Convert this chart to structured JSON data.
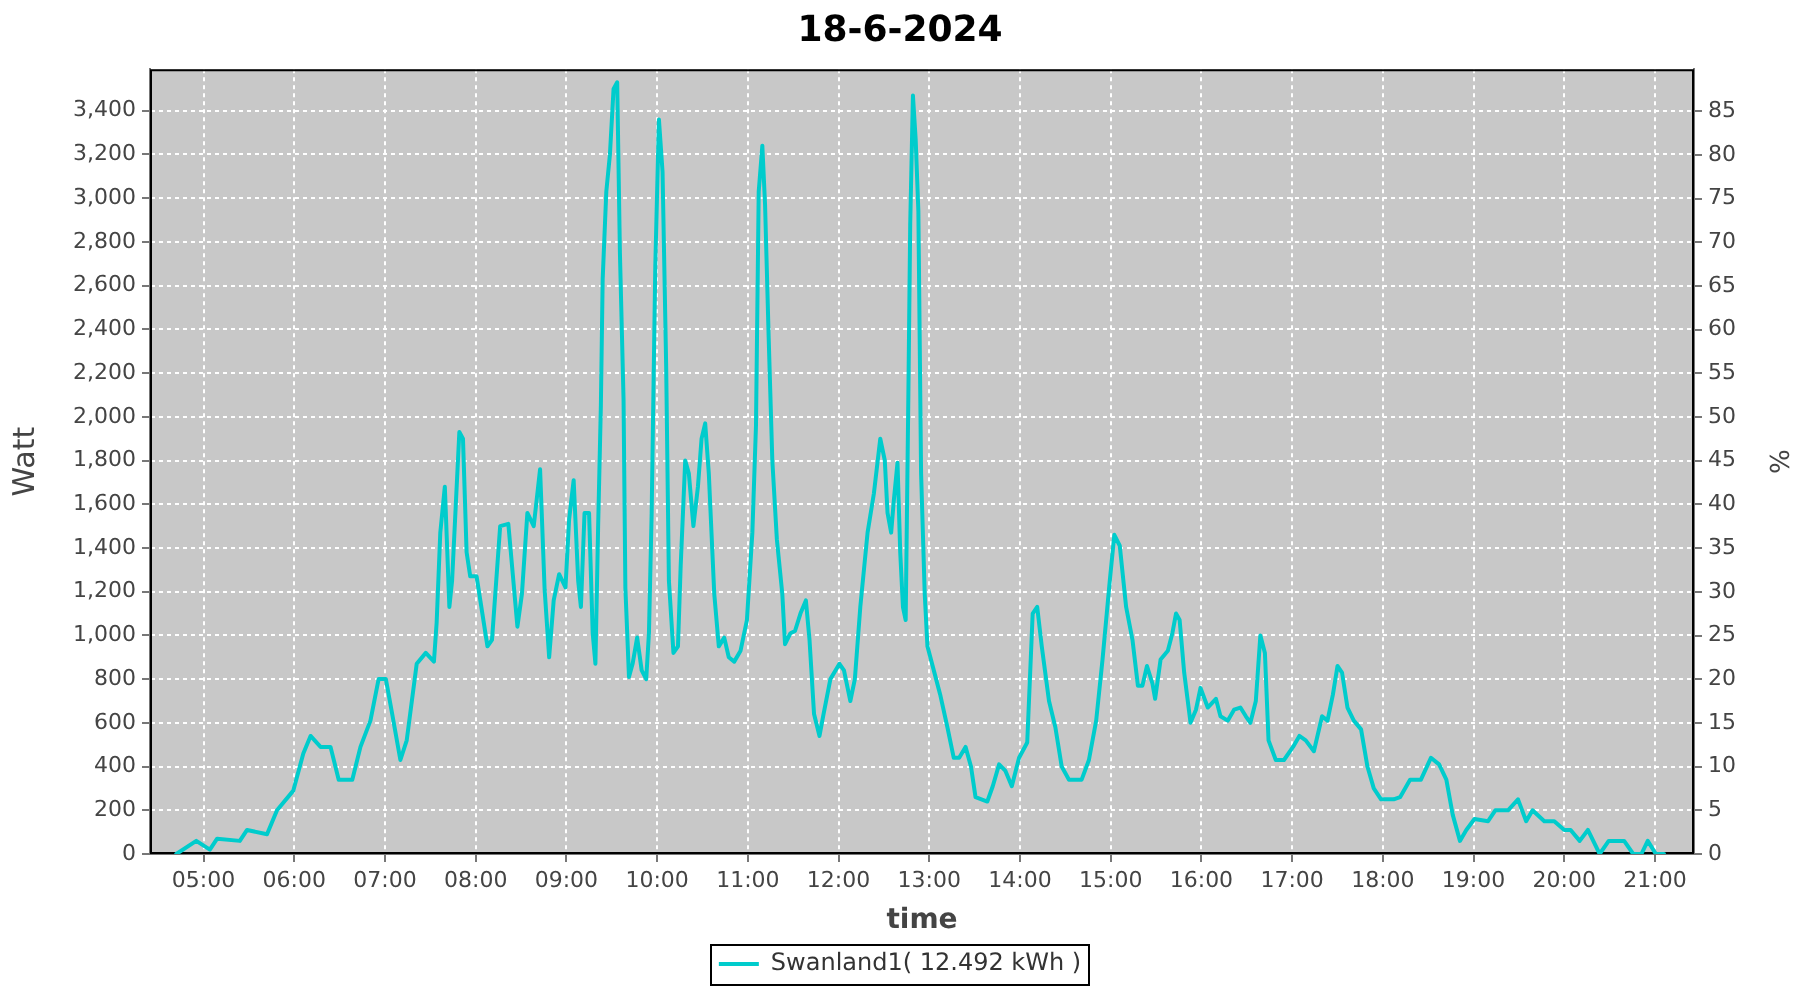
{
  "chart_data": {
    "type": "line",
    "title": "18-6-2024",
    "xlabel": "time",
    "ylabel": "Watt",
    "y2label": "%",
    "x": [
      4.7,
      4.92,
      5.07,
      5.15,
      5.4,
      5.48,
      5.7,
      5.81,
      5.99,
      6.1,
      6.18,
      6.29,
      6.4,
      6.49,
      6.64,
      6.73,
      6.84,
      6.93,
      7.01,
      7.08,
      7.17,
      7.24,
      7.35,
      7.45,
      7.54,
      7.57,
      7.61,
      7.66,
      7.71,
      7.74,
      7.78,
      7.82,
      7.86,
      7.9,
      7.94,
      8.01,
      8.13,
      8.18,
      8.27,
      8.36,
      8.46,
      8.51,
      8.57,
      8.64,
      8.71,
      8.76,
      8.81,
      8.86,
      8.92,
      8.99,
      9.03,
      9.08,
      9.13,
      9.16,
      9.2,
      9.25,
      9.29,
      9.32,
      9.35,
      9.38,
      9.4,
      9.44,
      9.48,
      9.52,
      9.56,
      9.59,
      9.63,
      9.65,
      9.69,
      9.73,
      9.78,
      9.83,
      9.88,
      9.91,
      9.94,
      9.98,
      10.02,
      10.06,
      10.1,
      10.13,
      10.18,
      10.23,
      10.26,
      10.31,
      10.35,
      10.4,
      10.45,
      10.49,
      10.53,
      10.57,
      10.63,
      10.68,
      10.74,
      10.79,
      10.85,
      10.92,
      10.99,
      11.05,
      11.09,
      11.12,
      11.16,
      11.19,
      11.23,
      11.27,
      11.32,
      11.38,
      11.41,
      11.47,
      11.52,
      11.58,
      11.64,
      11.68,
      11.73,
      11.79,
      11.83,
      11.91,
      12.01,
      12.06,
      12.13,
      12.18,
      12.24,
      12.32,
      12.39,
      12.46,
      12.51,
      12.54,
      12.58,
      12.61,
      12.65,
      12.68,
      12.71,
      12.74,
      12.77,
      12.79,
      12.82,
      12.85,
      12.88,
      12.91,
      12.95,
      12.98,
      13.05,
      13.12,
      13.2,
      13.27,
      13.33,
      13.4,
      13.46,
      13.51,
      13.64,
      13.7,
      13.77,
      13.84,
      13.91,
      13.99,
      14.08,
      14.14,
      14.19,
      14.24,
      14.32,
      14.39,
      14.46,
      14.54,
      14.68,
      14.76,
      14.84,
      14.91,
      14.99,
      15.04,
      15.1,
      15.17,
      15.24,
      15.3,
      15.35,
      15.4,
      15.46,
      15.49,
      15.55,
      15.63,
      15.68,
      15.72,
      15.76,
      15.81,
      15.88,
      15.94,
      15.99,
      16.07,
      16.16,
      16.21,
      16.29,
      16.36,
      16.43,
      16.49,
      16.54,
      16.6,
      16.65,
      16.7,
      16.74,
      16.82,
      16.91,
      17.01,
      17.08,
      17.15,
      17.24,
      17.33,
      17.39,
      17.45,
      17.5,
      17.55,
      17.61,
      17.68,
      17.76,
      17.83,
      17.9,
      17.98,
      18.12,
      18.19,
      18.3,
      18.42,
      18.53,
      18.62,
      18.7,
      18.77,
      18.85,
      18.92,
      19.01,
      19.16,
      19.24,
      19.38,
      19.49,
      19.58,
      19.65,
      19.78,
      19.89,
      20.0,
      20.07,
      20.17,
      20.26,
      20.39,
      20.49,
      20.66,
      20.76,
      20.85,
      20.92,
      21.01,
      21.1
    ],
    "series": [
      {
        "name": "Swanland1( 12.492 kWh )",
        "color": "#00cccc",
        "values": [
          0,
          60,
          20,
          70,
          60,
          110,
          90,
          200,
          290,
          460,
          540,
          490,
          490,
          340,
          340,
          490,
          610,
          800,
          800,
          640,
          430,
          520,
          870,
          920,
          880,
          1060,
          1470,
          1680,
          1130,
          1250,
          1590,
          1930,
          1900,
          1380,
          1270,
          1270,
          950,
          980,
          1500,
          1510,
          1040,
          1190,
          1560,
          1500,
          1760,
          1210,
          900,
          1160,
          1280,
          1220,
          1530,
          1710,
          1250,
          1130,
          1560,
          1560,
          1010,
          870,
          1500,
          2050,
          2630,
          3030,
          3200,
          3500,
          3530,
          2750,
          2080,
          1220,
          810,
          870,
          990,
          840,
          800,
          1010,
          1560,
          2690,
          3360,
          3120,
          2230,
          1250,
          920,
          950,
          1320,
          1800,
          1740,
          1500,
          1680,
          1900,
          1970,
          1740,
          1190,
          950,
          990,
          900,
          880,
          930,
          1070,
          1470,
          1960,
          3030,
          3240,
          2970,
          2360,
          1800,
          1440,
          1190,
          960,
          1010,
          1020,
          1100,
          1160,
          980,
          640,
          540,
          630,
          800,
          870,
          840,
          700,
          800,
          1130,
          1470,
          1650,
          1900,
          1800,
          1560,
          1470,
          1620,
          1790,
          1380,
          1130,
          1070,
          2110,
          2880,
          3470,
          3270,
          2940,
          1740,
          1190,
          950,
          840,
          730,
          580,
          440,
          440,
          490,
          400,
          260,
          240,
          310,
          410,
          380,
          310,
          440,
          510,
          1100,
          1130,
          950,
          700,
          580,
          400,
          340,
          340,
          430,
          610,
          890,
          1250,
          1460,
          1410,
          1130,
          980,
          770,
          770,
          860,
          780,
          710,
          890,
          930,
          1010,
          1100,
          1070,
          830,
          600,
          660,
          760,
          670,
          710,
          630,
          610,
          660,
          670,
          630,
          600,
          700,
          1000,
          920,
          520,
          430,
          430,
          490,
          540,
          520,
          470,
          630,
          610,
          730,
          860,
          830,
          670,
          610,
          570,
          400,
          300,
          250,
          250,
          260,
          340,
          340,
          440,
          410,
          340,
          180,
          60,
          110,
          160,
          150,
          200,
          200,
          250,
          150,
          200,
          150,
          150,
          110,
          110,
          60,
          110,
          0,
          60,
          60,
          0,
          0,
          60,
          0,
          0
        ]
      }
    ],
    "xlim": [
      4.41,
      21.43
    ],
    "xticks": [
      {
        "value": 5,
        "label": "05:00"
      },
      {
        "value": 6,
        "label": "06:00"
      },
      {
        "value": 7,
        "label": "07:00"
      },
      {
        "value": 8,
        "label": "08:00"
      },
      {
        "value": 9,
        "label": "09:00"
      },
      {
        "value": 10,
        "label": "10:00"
      },
      {
        "value": 11,
        "label": "11:00"
      },
      {
        "value": 12,
        "label": "12:00"
      },
      {
        "value": 13,
        "label": "13:00"
      },
      {
        "value": 14,
        "label": "14:00"
      },
      {
        "value": 15,
        "label": "15:00"
      },
      {
        "value": 16,
        "label": "16:00"
      },
      {
        "value": 17,
        "label": "17:00"
      },
      {
        "value": 18,
        "label": "18:00"
      },
      {
        "value": 19,
        "label": "19:00"
      },
      {
        "value": 20,
        "label": "20:00"
      },
      {
        "value": 21,
        "label": "21:00"
      }
    ],
    "ylim": [
      0,
      3590
    ],
    "yticks": [
      0,
      200,
      400,
      600,
      800,
      {
        "value": 1000,
        "label": "1,000"
      },
      {
        "value": 1200,
        "label": "1,200"
      },
      {
        "value": 1400,
        "label": "1,400"
      },
      {
        "value": 1600,
        "label": "1,600"
      },
      {
        "value": 1800,
        "label": "1,800"
      },
      {
        "value": 2000,
        "label": "2,000"
      },
      {
        "value": 2200,
        "label": "2,200"
      },
      {
        "value": 2400,
        "label": "2,400"
      },
      {
        "value": 2600,
        "label": "2,600"
      },
      {
        "value": 2800,
        "label": "2,800"
      },
      {
        "value": 3000,
        "label": "3,000"
      },
      {
        "value": 3200,
        "label": "3,200"
      },
      {
        "value": 3400,
        "label": "3,400"
      }
    ],
    "y2lim": [
      0,
      89.8
    ],
    "y2ticks": [
      0,
      5,
      10,
      15,
      20,
      25,
      30,
      35,
      40,
      45,
      50,
      55,
      60,
      65,
      70,
      75,
      80,
      85
    ],
    "grid": true,
    "legend": "bottom",
    "marker": "none",
    "line_style": "solid"
  }
}
